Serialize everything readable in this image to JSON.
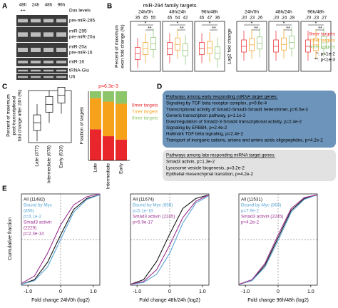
{
  "panel_a": {
    "label": "A",
    "columns": [
      "48h",
      "24h",
      "48h",
      "96h"
    ],
    "dox": [
      "++"
    ],
    "dox_label": "Dox levels",
    "bands": [
      "pre-miR-295",
      "miR-295",
      "pre-miR-20a",
      "miR-20a",
      "pre-miR-16",
      "miR-16",
      "tRNA-Glu",
      "U6"
    ]
  },
  "panel_b": {
    "label": "B",
    "title": "miR-294 family targets",
    "series": [
      {
        "name": "8mer targets",
        "color": "#e8262b"
      },
      {
        "name": "7mer targets",
        "color": "#f39c1b"
      },
      {
        "name": "6mer targets",
        "color": "#86c06a"
      }
    ],
    "notes": [
      "*: p<1e-2",
      "**: p<1e-3"
    ],
    "left": {
      "ylabel": [
        "Percent of maximum",
        "exon fold change (%)"
      ],
      "ylim": [
        0,
        100
      ],
      "groups": [
        {
          "name": "24h/0h",
          "values": [
            35,
            45,
            55
          ],
          "stars": [
            "*",
            "**"
          ]
        },
        {
          "name": "48h/24h",
          "values": [
            45,
            54,
            42
          ],
          "stars": [
            "*",
            "**"
          ]
        },
        {
          "name": "96h/48h",
          "values": [
            45,
            47,
            36
          ],
          "stars": [
            "*",
            "**"
          ]
        }
      ]
    },
    "right": {
      "ylabel": [
        "Log2 fold change"
      ],
      "ylim": [
        -0.3,
        0.7
      ],
      "groups": [
        {
          "name": "24h/0h",
          "values": [
            0.2,
            0.23,
            0.26
          ],
          "value_labels": [
            ".20",
            ".23",
            ".26"
          ],
          "stars": [
            "*",
            "**"
          ]
        },
        {
          "name": "48h/24h",
          "values": [
            0.2,
            0.24,
            0.28
          ],
          "value_labels": [
            ".20",
            ".24",
            ".28"
          ],
          "stars": [
            "*",
            "**"
          ]
        },
        {
          "name": "96h/48h",
          "values": [
            0.2,
            0.23,
            0.27
          ],
          "value_labels": [
            ".20",
            ".23",
            ".27"
          ],
          "stars": [
            "*",
            "**"
          ]
        }
      ]
    }
  },
  "panel_c": {
    "label": "C",
    "box": {
      "ylabel": [
        "Percent of maximum",
        "post-transcriptional",
        "fold change after 24h (%)"
      ],
      "categories": [
        "Late (377)",
        "Intermediate (678)",
        "Early (510)"
      ],
      "values": [
        5,
        65,
        95
      ],
      "ylim": [
        -60,
        110
      ]
    },
    "stacked": {
      "type": "bar",
      "annotation": "p=6.3e-3",
      "ylabel": "Fraction of targets",
      "categories": [
        "Late",
        "Intermediate",
        "Early"
      ],
      "ylim": [
        0,
        1
      ],
      "series": [
        {
          "name": "8mer targets",
          "color": "#e8262b",
          "values": [
            0.45,
            0.35,
            0.3
          ]
        },
        {
          "name": "7mer targets",
          "color": "#f7a21b",
          "values": [
            0.45,
            0.5,
            0.52
          ]
        },
        {
          "name": "6mer targets",
          "color": "#8cc56a",
          "values": [
            0.1,
            0.15,
            0.18
          ]
        }
      ]
    }
  },
  "panel_d": {
    "label": "D",
    "early": {
      "title": "Pathways among early responding miRNA target genes:",
      "items": [
        "Signaling by TGF beta receptor complex, p=9.6e-4",
        "Transcriptional activity of Smad2-Smad3-Smad4 heterotrimer, p=6.5e-3",
        "Generic transcription pathway, p=1.1e-2",
        "Downregulation of Smad2-3-Smad4 transcriptional activity, p=2.4e-2",
        "Signaling by ERBB4, p=2.4e-2",
        "Hallmark TGF beta signaling, p=2.4e-2",
        "Transport of inorganic cations, anions and amino acids oligopeptides, p=4.2e-2"
      ]
    },
    "late": {
      "title": "Pathways among late responding miRNA target genes:",
      "items": [
        "Smad3 activin, p=1.3e-2",
        "Lysosome vesicle biogenesis, p=3.2e-2",
        "Epithelial mesenchymal transition, p=4.2e-2"
      ]
    }
  },
  "panel_e": {
    "label": "E",
    "ylabel": "Cumulative fraction",
    "chart_data": [
      {
        "type": "line",
        "xlabel": "Fold change 24h/0h (log2)",
        "xlim": [
          -1.2,
          1.2
        ],
        "ylim": [
          0,
          1
        ],
        "xticks": [
          {
            "value": -1,
            "label": "-1.0"
          },
          0,
          {
            "value": 1,
            "label": "1.0"
          }
        ],
        "x": [
          -1.2,
          -0.8,
          -0.4,
          0,
          0.4,
          0.8,
          1.2
        ],
        "series": [
          {
            "labels": [
              "All (11482)"
            ],
            "color": "#111111",
            "values": [
              0.01,
              0.06,
              0.25,
              0.55,
              0.83,
              0.95,
              0.99
            ]
          },
          {
            "labels": [
              "Bound by Myc",
              "(856)",
              "p=4.1e-2"
            ],
            "color": "#5aa6d6",
            "values": [
              0.01,
              0.05,
              0.2,
              0.5,
              0.8,
              0.94,
              0.99
            ]
          },
          {
            "labels": [
              "Smad3 activin",
              "(2229)",
              "p=2.3e-14"
            ],
            "color": "#9b2f8f",
            "values": [
              0.02,
              0.1,
              0.35,
              0.66,
              0.88,
              0.97,
              1
            ]
          }
        ]
      },
      {
        "type": "line",
        "xlabel": "Fold change 48h/24h (log2)",
        "xlim": [
          -1.2,
          1.2
        ],
        "ylim": [
          0,
          1
        ],
        "xticks": [
          {
            "value": -1,
            "label": "-1.0"
          },
          0,
          {
            "value": 1,
            "label": "1.0"
          }
        ],
        "x": [
          -1.2,
          -0.8,
          -0.4,
          0,
          0.4,
          0.8,
          1.2
        ],
        "series": [
          {
            "labels": [
              "All (11674)"
            ],
            "color": "#111111",
            "values": [
              0.01,
              0.06,
              0.26,
              0.56,
              0.84,
              0.95,
              0.99
            ]
          },
          {
            "labels": [
              "Bound by Myc (856)",
              "p=5.1e-18"
            ],
            "color": "#5aa6d6",
            "values": [
              0.01,
              0.03,
              0.12,
              0.35,
              0.68,
              0.9,
              0.98
            ]
          },
          {
            "labels": [
              "Smad3 activin (2245)",
              "p=5.9e-17"
            ],
            "color": "#9b2f8f",
            "values": [
              0.01,
              0.04,
              0.17,
              0.44,
              0.74,
              0.92,
              0.99
            ]
          }
        ]
      },
      {
        "type": "line",
        "xlabel": "Fold change 96h/48h (log2)",
        "xlim": [
          -1.2,
          1.2
        ],
        "ylim": [
          0,
          1
        ],
        "xticks": [
          {
            "value": -1,
            "label": "-1.0"
          },
          0,
          {
            "value": 1,
            "label": "1.0"
          }
        ],
        "x": [
          -1.2,
          -0.8,
          -0.4,
          0,
          0.4,
          0.8,
          1.2
        ],
        "series": [
          {
            "labels": [
              "All (11531)"
            ],
            "color": "#111111",
            "values": [
              0.01,
              0.05,
              0.22,
              0.52,
              0.82,
              0.95,
              0.99
            ]
          },
          {
            "labels": [
              "Bound by Myc (864)",
              "p=7.9e-2"
            ],
            "color": "#5aa6d6",
            "values": [
              0.01,
              0.05,
              0.2,
              0.49,
              0.8,
              0.94,
              0.99
            ]
          },
          {
            "labels": [
              "Smad3 activin (2245)",
              "p=4.2e-2"
            ],
            "color": "#9b2f8f",
            "values": [
              0.01,
              0.06,
              0.24,
              0.55,
              0.84,
              0.96,
              0.99
            ]
          }
        ]
      }
    ]
  }
}
